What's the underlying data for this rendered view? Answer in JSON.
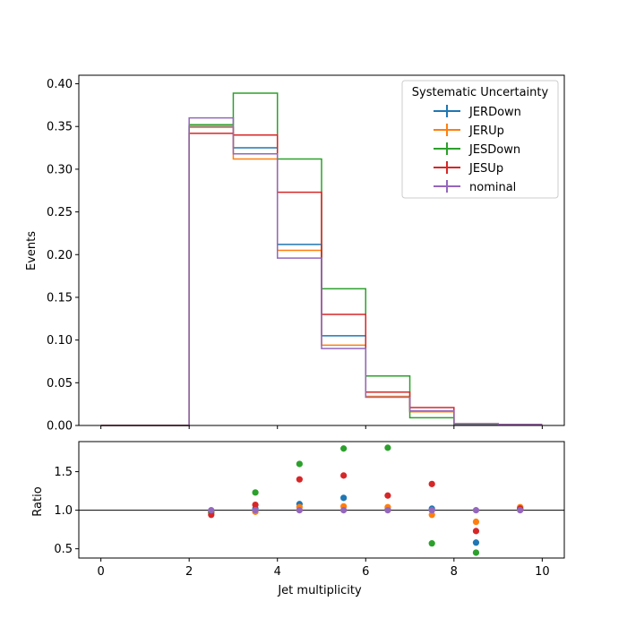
{
  "chart_data": [
    {
      "type": "line",
      "drawstyle": "step-histogram",
      "xlabel": "",
      "ylabel": "Events",
      "xlim": [
        -0.5,
        10.5
      ],
      "ylim": [
        0.0,
        0.41
      ],
      "x_ticks": [
        0,
        2,
        4,
        6,
        8,
        10
      ],
      "y_ticks": [
        "0.00",
        "0.05",
        "0.10",
        "0.15",
        "0.20",
        "0.25",
        "0.30",
        "0.35",
        "0.40"
      ],
      "y_tick_values": [
        0.0,
        0.05,
        0.1,
        0.15,
        0.2,
        0.25,
        0.3,
        0.35,
        0.4
      ],
      "bin_edges": [
        0,
        1,
        2,
        3,
        4,
        5,
        6,
        7,
        8,
        9,
        10
      ],
      "legend": {
        "title": "Systematic Uncertainty",
        "placement": "top-right"
      },
      "series": [
        {
          "name": "JERDown",
          "color": "#1f77b4",
          "values": [
            0,
            0,
            0.35,
            0.325,
            0.212,
            0.105,
            0.034,
            0.017,
            0.002,
            0.001
          ]
        },
        {
          "name": "JERUp",
          "color": "#ff7f0e",
          "values": [
            0,
            0,
            0.349,
            0.312,
            0.205,
            0.094,
            0.034,
            0.016,
            0.002,
            0.001
          ]
        },
        {
          "name": "JESDown",
          "color": "#2ca02c",
          "values": [
            0,
            0,
            0.352,
            0.389,
            0.312,
            0.16,
            0.058,
            0.009,
            0.001,
            0.001
          ]
        },
        {
          "name": "JESUp",
          "color": "#d62728",
          "values": [
            0,
            0,
            0.342,
            0.34,
            0.273,
            0.13,
            0.039,
            0.021,
            0.002,
            0.001
          ]
        },
        {
          "name": "nominal",
          "color": "#9467bd",
          "values": [
            0,
            0,
            0.36,
            0.318,
            0.196,
            0.09,
            0.033,
            0.017,
            0.002,
            0.001
          ]
        }
      ]
    },
    {
      "type": "scatter",
      "xlabel": "Jet multiplicity",
      "ylabel": "Ratio",
      "xlim": [
        -0.5,
        10.5
      ],
      "ylim": [
        0.38,
        1.89
      ],
      "x_ticks": [
        "0",
        "2",
        "4",
        "6",
        "8",
        "10"
      ],
      "x_tick_values": [
        0,
        2,
        4,
        6,
        8,
        10
      ],
      "y_ticks": [
        "0.5",
        "1.0",
        "1.5"
      ],
      "y_tick_values": [
        0.5,
        1.0,
        1.5
      ],
      "reference_line": 1.0,
      "x": [
        2.5,
        3.5,
        4.5,
        5.5,
        6.5,
        7.5,
        8.5,
        9.5
      ],
      "series": [
        {
          "name": "JERDown",
          "color": "#1f77b4",
          "values": [
            0.97,
            1.02,
            1.08,
            1.16,
            1.01,
            1.02,
            0.58,
            1.01
          ]
        },
        {
          "name": "JERUp",
          "color": "#ff7f0e",
          "values": [
            0.97,
            0.98,
            1.04,
            1.05,
            1.04,
            0.94,
            0.85,
            1.04
          ]
        },
        {
          "name": "JESDown",
          "color": "#2ca02c",
          "values": [
            0.98,
            1.23,
            1.6,
            1.8,
            1.81,
            0.57,
            0.45,
            1.02
          ]
        },
        {
          "name": "JESUp",
          "color": "#d62728",
          "values": [
            0.94,
            1.07,
            1.4,
            1.45,
            1.19,
            1.34,
            0.73,
            1.02
          ]
        },
        {
          "name": "nominal",
          "color": "#9467bd",
          "values": [
            1.0,
            1.0,
            1.0,
            1.0,
            1.0,
            1.0,
            1.0,
            1.0
          ]
        }
      ]
    }
  ]
}
